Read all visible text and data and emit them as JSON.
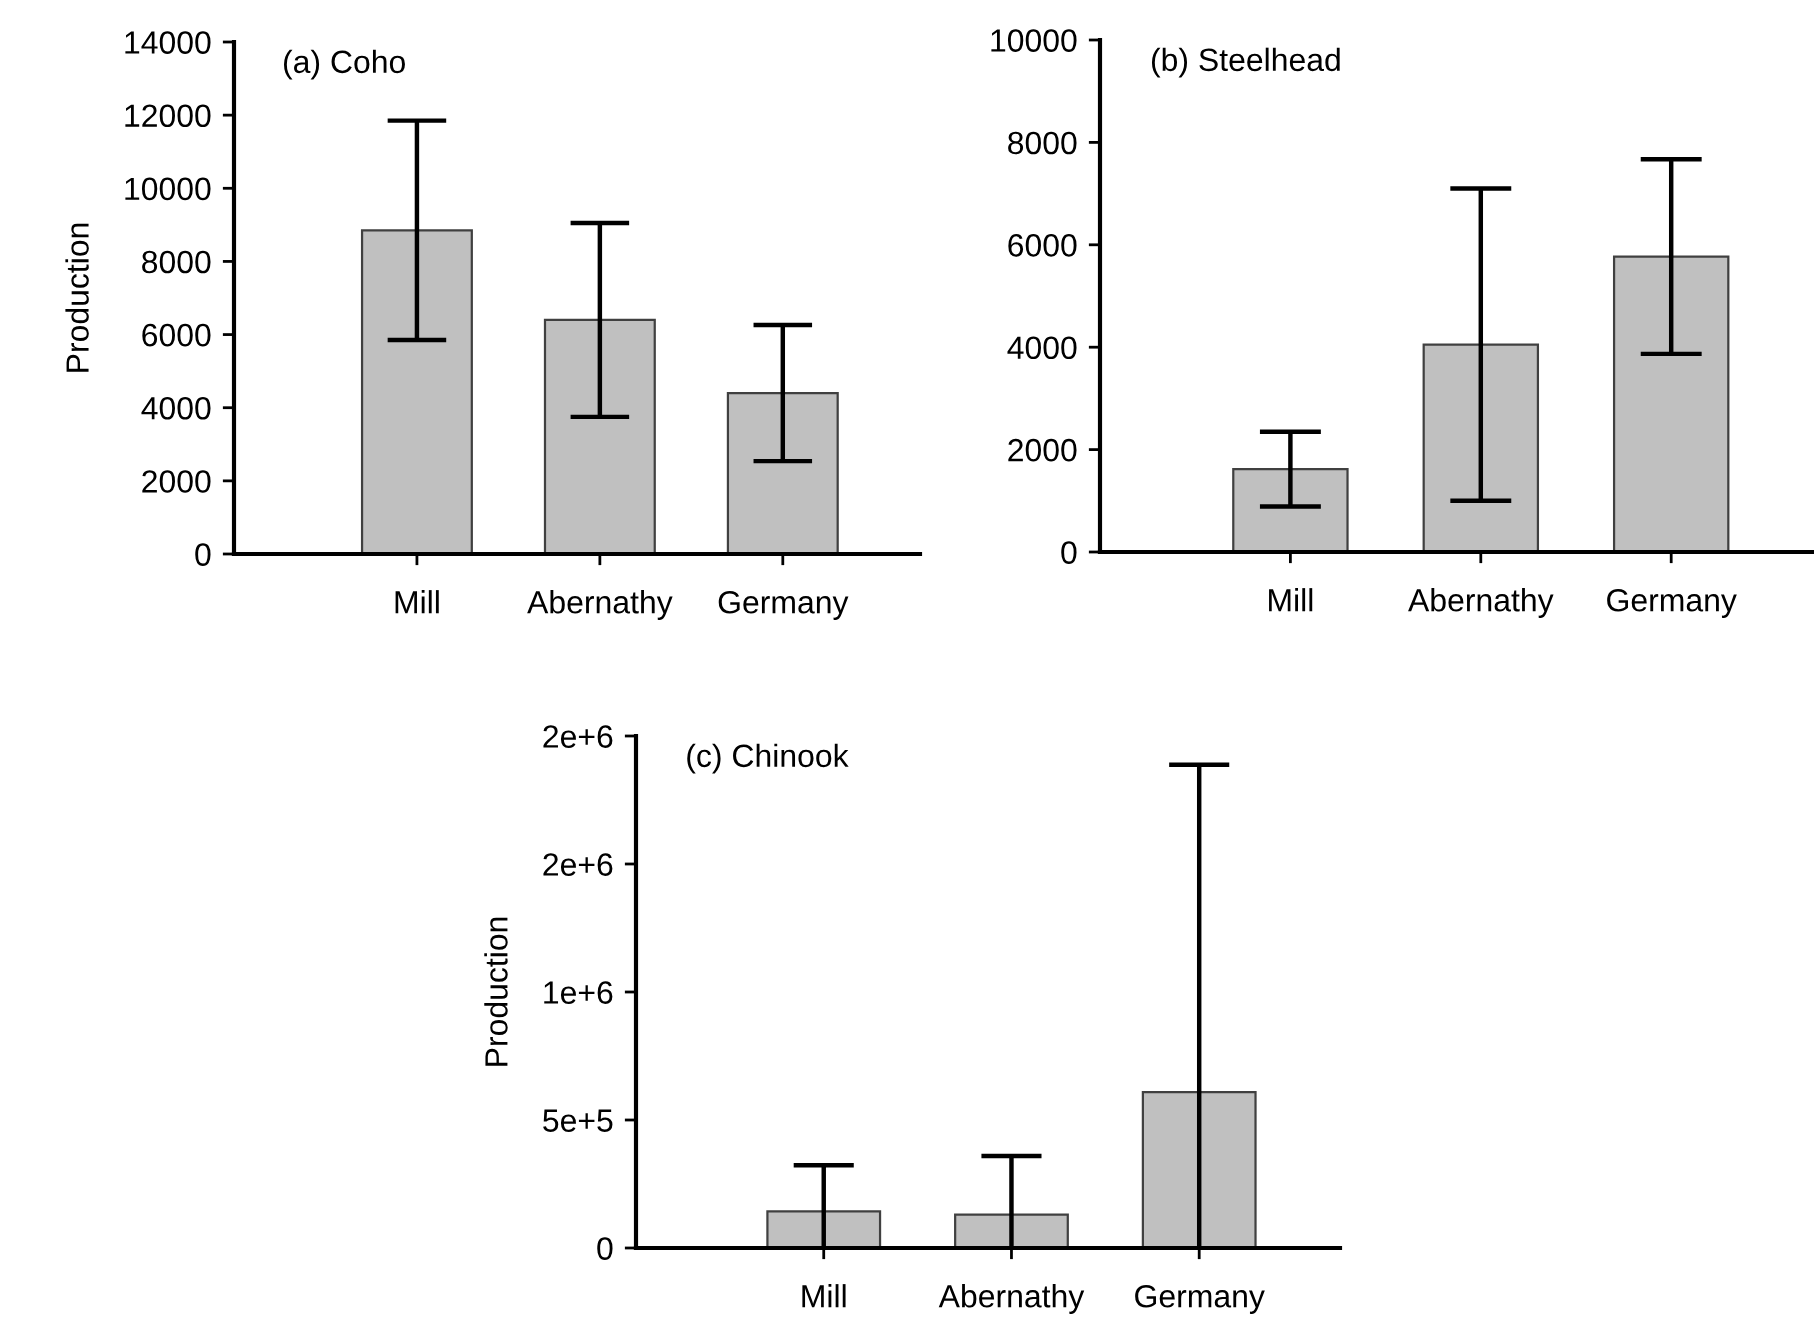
{
  "chart_data": [
    {
      "type": "bar",
      "title": "(a) Coho",
      "ylabel": "Production",
      "categories": [
        "Mill",
        "Abernathy",
        "Germany"
      ],
      "color": "#c0c0c0",
      "values": [
        8850,
        6400,
        4400
      ],
      "errors": [
        3000,
        2650,
        1860
      ],
      "ylim": [
        0,
        14000
      ],
      "yticks": [
        0,
        2000,
        4000,
        6000,
        8000,
        10000,
        12000,
        14000
      ],
      "grid": false,
      "legend": false
    },
    {
      "type": "bar",
      "title": "(b) Steelhead",
      "categories": [
        "Mill",
        "Abernathy",
        "Germany"
      ],
      "color": "#c0c0c0",
      "values": [
        1620,
        4050,
        5770
      ],
      "errors": [
        730,
        3050,
        1900
      ],
      "ylim": [
        0,
        10000
      ],
      "yticks": [
        0,
        2000,
        4000,
        6000,
        8000,
        10000
      ],
      "grid": false,
      "legend": false
    },
    {
      "type": "bar",
      "title": "(c) Chinook",
      "ylabel": "Production",
      "categories": [
        "Mill",
        "Abernathy",
        "Germany"
      ],
      "color": "#c0c0c0",
      "values": [
        143000,
        130000,
        609000
      ],
      "errors": [
        [
          0,
          323000
        ],
        [
          0,
          359000
        ],
        [
          0,
          1888000
        ]
      ],
      "ylim": [
        0,
        2000000
      ],
      "yticks": [
        0,
        {
          "value": 500000,
          "label": "5e+5"
        },
        {
          "value": 1000000,
          "label": "1e+6"
        },
        {
          "value": 1500000,
          "label": "2e+6"
        },
        {
          "value": 2000000,
          "label": "2e+6"
        }
      ],
      "grid": false,
      "legend": false
    }
  ]
}
